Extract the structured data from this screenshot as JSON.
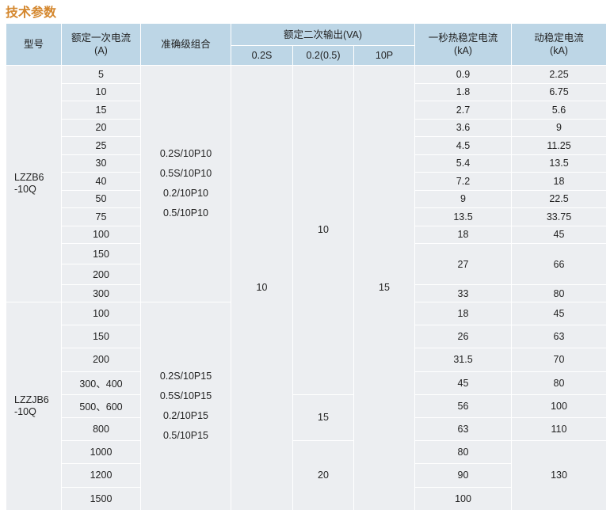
{
  "title": "技术参数",
  "headers": {
    "model": "型号",
    "primary_current": "额定一次电流\n(A)",
    "accuracy": "准确级组合",
    "secondary_output": "额定二次输出(VA)",
    "sub": [
      "0.2S",
      "0.2(0.5)",
      "10P"
    ],
    "thermal": "一秒热稳定电流\n(kA)",
    "dynamic": "动稳定电流\n(kA)"
  },
  "blocks": [
    {
      "model": "LZZB6\n-10Q",
      "accuracy": [
        "0.2S/10P10",
        "0.5S/10P10",
        "0.2/10P10",
        "0.5/10P10"
      ],
      "currents": [
        "5",
        "10",
        "15",
        "20",
        "25",
        "30",
        "40",
        "50",
        "75",
        "100",
        "150",
        "200",
        "300"
      ],
      "thermal": [
        [
          "0.9",
          1
        ],
        [
          "1.8",
          1
        ],
        [
          "2.7",
          1
        ],
        [
          "3.6",
          1
        ],
        [
          "4.5",
          1
        ],
        [
          "5.4",
          1
        ],
        [
          "7.2",
          1
        ],
        [
          "9",
          1
        ],
        [
          "13.5",
          1
        ],
        [
          "18",
          1
        ],
        [
          "27",
          2
        ],
        [
          "33",
          1
        ]
      ],
      "dynamic": [
        [
          "2.25",
          1
        ],
        [
          "6.75",
          1
        ],
        [
          "5.6",
          1
        ],
        [
          "9",
          1
        ],
        [
          "11.25",
          1
        ],
        [
          "13.5",
          1
        ],
        [
          "18",
          1
        ],
        [
          "22.5",
          1
        ],
        [
          "33.75",
          1
        ],
        [
          "45",
          1
        ],
        [
          "66",
          2
        ],
        [
          "80",
          1
        ]
      ]
    },
    {
      "model": "LZZJB6\n-10Q",
      "accuracy": [
        "0.2S/10P15",
        "0.5S/10P15",
        "0.2/10P15",
        "0.5/10P15"
      ],
      "currents": [
        "100",
        "150",
        "200",
        "300、400",
        "500、600",
        "800",
        "1000",
        "1200",
        "1500"
      ],
      "thermal": [
        [
          "18",
          1
        ],
        [
          "26",
          1
        ],
        [
          "31.5",
          1
        ],
        [
          "45",
          1
        ],
        [
          "56",
          1
        ],
        [
          "63",
          1
        ],
        [
          "80",
          1
        ],
        [
          "90",
          1
        ],
        [
          "100",
          1
        ]
      ],
      "dynamic": [
        [
          "45",
          1
        ],
        [
          "63",
          1
        ],
        [
          "70",
          1
        ],
        [
          "80",
          1
        ],
        [
          "100",
          1
        ],
        [
          "110",
          1
        ],
        [
          "130",
          3
        ]
      ]
    }
  ],
  "output_02s": "10",
  "output_02_05": [
    [
      "10",
      17
    ],
    [
      "15",
      2
    ],
    [
      "20",
      3
    ]
  ],
  "output_10p": "15"
}
